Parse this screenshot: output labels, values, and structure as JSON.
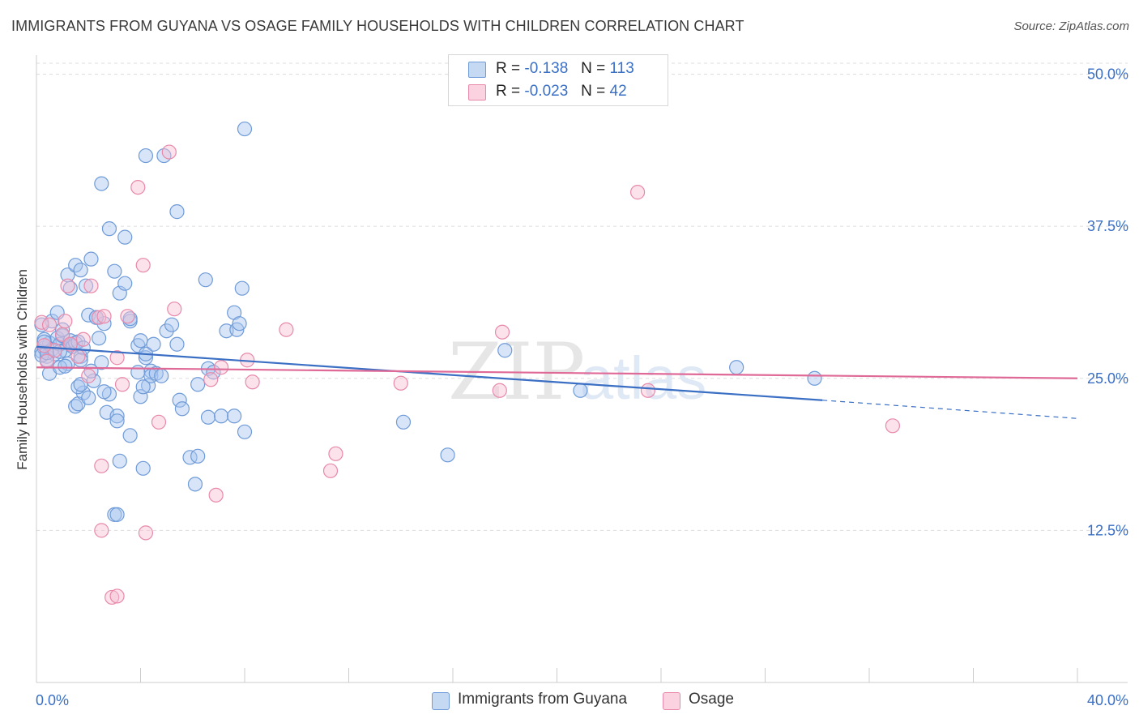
{
  "title": "IMMIGRANTS FROM GUYANA VS OSAGE FAMILY HOUSEHOLDS WITH CHILDREN CORRELATION CHART",
  "source": "Source: ZipAtlas.com",
  "watermark": {
    "zip": "ZIP",
    "atlas": "atlas"
  },
  "legend_top": [
    {
      "r_label": "R =",
      "r_value": "-0.138",
      "n_label": "N =",
      "n_value": "113"
    },
    {
      "r_label": "R =",
      "r_value": "-0.023",
      "n_label": "N =",
      "n_value": "42"
    }
  ],
  "colors": {
    "blue_fill": "#a9c6ef",
    "blue_stroke": "#6f9bd8",
    "blue_line": "#3a6fc4",
    "pink_fill": "#f6bfd2",
    "pink_stroke": "#e889ab",
    "pink_line": "#e06a97",
    "tick_label": "#3a6fc4",
    "grid": "#dddddd"
  },
  "chart_data": {
    "type": "scatter",
    "title": "IMMIGRANTS FROM GUYANA VS OSAGE FAMILY HOUSEHOLDS WITH CHILDREN CORRELATION CHART",
    "xlabel": "",
    "ylabel": "Family Households with Children",
    "xlim": [
      0,
      40
    ],
    "ylim": [
      0,
      50.9
    ],
    "x_tick_labels": [
      "0.0%",
      "40.0%"
    ],
    "y_ticks": [
      12.5,
      25.0,
      37.5,
      50.0
    ],
    "y_tick_labels": [
      "12.5%",
      "25.0%",
      "37.5%",
      "50.0%"
    ],
    "grid": true,
    "legend_position": "top-center",
    "series": [
      {
        "name": "Immigrants from Guyana",
        "color": "#a9c6ef",
        "trend": {
          "x0": 0,
          "y0": 27.6,
          "x1": 30.2,
          "y1": 23.2,
          "dashed_to_x": 40,
          "dashed_to_y": 21.7
        },
        "points": [
          [
            0.2,
            27.2
          ],
          [
            0.3,
            27.5
          ],
          [
            0.4,
            26.8
          ],
          [
            0.5,
            27.9
          ],
          [
            0.6,
            27.4
          ],
          [
            0.3,
            28.2
          ],
          [
            0.7,
            27.0
          ],
          [
            0.8,
            28.3
          ],
          [
            0.4,
            26.5
          ],
          [
            0.9,
            27.8
          ],
          [
            1.0,
            28.5
          ],
          [
            1.1,
            27.3
          ],
          [
            1.2,
            26.2
          ],
          [
            1.3,
            28.1
          ],
          [
            1.4,
            27.6
          ],
          [
            1.5,
            27.9
          ],
          [
            1.6,
            28.0
          ],
          [
            1.7,
            26.8
          ],
          [
            1.8,
            27.5
          ],
          [
            0.5,
            25.4
          ],
          [
            0.6,
            29.7
          ],
          [
            0.8,
            30.4
          ],
          [
            1.0,
            29.0
          ],
          [
            0.9,
            25.9
          ],
          [
            1.1,
            26.0
          ],
          [
            1.3,
            32.4
          ],
          [
            1.2,
            33.5
          ],
          [
            1.5,
            34.3
          ],
          [
            1.7,
            33.9
          ],
          [
            1.9,
            32.6
          ],
          [
            2.1,
            34.8
          ],
          [
            2.0,
            30.2
          ],
          [
            2.3,
            30.0
          ],
          [
            2.4,
            28.3
          ],
          [
            2.5,
            26.3
          ],
          [
            2.6,
            29.5
          ],
          [
            2.2,
            24.8
          ],
          [
            2.8,
            23.7
          ],
          [
            2.7,
            22.2
          ],
          [
            1.5,
            22.7
          ],
          [
            1.6,
            22.9
          ],
          [
            1.8,
            23.8
          ],
          [
            2.0,
            23.4
          ],
          [
            1.6,
            24.3
          ],
          [
            1.7,
            24.5
          ],
          [
            2.1,
            25.6
          ],
          [
            3.1,
            21.9
          ],
          [
            3.1,
            21.5
          ],
          [
            3.0,
            33.8
          ],
          [
            3.2,
            32.0
          ],
          [
            3.4,
            36.6
          ],
          [
            2.8,
            37.3
          ],
          [
            3.4,
            32.8
          ],
          [
            3.6,
            29.7
          ],
          [
            3.6,
            29.9
          ],
          [
            3.9,
            27.7
          ],
          [
            4.0,
            28.1
          ],
          [
            4.2,
            26.7
          ],
          [
            4.3,
            24.4
          ],
          [
            4.0,
            23.5
          ],
          [
            4.1,
            24.3
          ],
          [
            4.4,
            25.6
          ],
          [
            4.1,
            17.6
          ],
          [
            3.2,
            18.2
          ],
          [
            3.6,
            20.3
          ],
          [
            3.0,
            13.8
          ],
          [
            3.1,
            13.8
          ],
          [
            4.5,
            27.8
          ],
          [
            4.4,
            25.2
          ],
          [
            4.6,
            25.4
          ],
          [
            4.8,
            25.2
          ],
          [
            5.0,
            28.9
          ],
          [
            5.2,
            29.4
          ],
          [
            5.4,
            27.8
          ],
          [
            5.5,
            23.2
          ],
          [
            5.6,
            22.5
          ],
          [
            5.9,
            18.5
          ],
          [
            6.2,
            18.6
          ],
          [
            6.1,
            16.3
          ],
          [
            6.2,
            24.5
          ],
          [
            6.6,
            21.8
          ],
          [
            6.6,
            25.8
          ],
          [
            6.8,
            25.5
          ],
          [
            7.1,
            21.9
          ],
          [
            7.6,
            21.9
          ],
          [
            7.3,
            28.9
          ],
          [
            7.7,
            29.0
          ],
          [
            7.6,
            30.4
          ],
          [
            7.8,
            29.5
          ],
          [
            8.0,
            20.6
          ],
          [
            6.5,
            33.1
          ],
          [
            7.9,
            32.4
          ],
          [
            5.4,
            38.7
          ],
          [
            4.2,
            43.3
          ],
          [
            4.9,
            43.3
          ],
          [
            8.0,
            45.5
          ],
          [
            2.5,
            41.0
          ],
          [
            4.2,
            27.0
          ],
          [
            14.1,
            21.4
          ],
          [
            15.8,
            18.7
          ],
          [
            18.0,
            27.3
          ],
          [
            20.9,
            24.0
          ],
          [
            26.9,
            25.9
          ],
          [
            29.9,
            25.0
          ],
          [
            0.2,
            26.9
          ],
          [
            0.4,
            27.1
          ],
          [
            0.3,
            28.0
          ],
          [
            0.9,
            27.2
          ],
          [
            1.7,
            26.5
          ],
          [
            2.6,
            23.9
          ],
          [
            3.9,
            25.5
          ],
          [
            2.3,
            30.0
          ],
          [
            0.2,
            29.4
          ]
        ]
      },
      {
        "name": "Osage",
        "color": "#f6bfd2",
        "trend": {
          "x0": 0,
          "y0": 25.9,
          "x1": 40,
          "y1": 25.0
        },
        "points": [
          [
            0.2,
            29.6
          ],
          [
            0.5,
            29.4
          ],
          [
            0.7,
            27.3
          ],
          [
            0.4,
            26.4
          ],
          [
            1.0,
            28.6
          ],
          [
            1.1,
            29.7
          ],
          [
            1.3,
            27.8
          ],
          [
            1.2,
            32.6
          ],
          [
            1.6,
            26.8
          ],
          [
            1.8,
            28.2
          ],
          [
            2.0,
            25.2
          ],
          [
            2.1,
            32.6
          ],
          [
            2.4,
            30.0
          ],
          [
            2.6,
            30.1
          ],
          [
            3.1,
            26.7
          ],
          [
            3.5,
            30.1
          ],
          [
            3.3,
            24.5
          ],
          [
            4.1,
            34.3
          ],
          [
            3.9,
            40.7
          ],
          [
            5.1,
            43.6
          ],
          [
            5.3,
            30.7
          ],
          [
            4.7,
            21.4
          ],
          [
            6.7,
            24.9
          ],
          [
            7.1,
            25.9
          ],
          [
            8.1,
            26.5
          ],
          [
            8.3,
            24.7
          ],
          [
            9.6,
            29.0
          ],
          [
            11.5,
            18.8
          ],
          [
            11.3,
            17.4
          ],
          [
            6.9,
            15.4
          ],
          [
            2.5,
            17.8
          ],
          [
            2.5,
            12.5
          ],
          [
            4.2,
            12.3
          ],
          [
            2.9,
            7.0
          ],
          [
            3.1,
            7.1
          ],
          [
            14.0,
            24.6
          ],
          [
            17.9,
            28.8
          ],
          [
            17.8,
            24.0
          ],
          [
            23.1,
            40.3
          ],
          [
            23.5,
            24.0
          ],
          [
            32.9,
            21.1
          ],
          [
            0.3,
            27.7
          ]
        ]
      }
    ]
  },
  "legend_bottom": [
    {
      "label": "Immigrants from Guyana"
    },
    {
      "label": "Osage"
    }
  ]
}
